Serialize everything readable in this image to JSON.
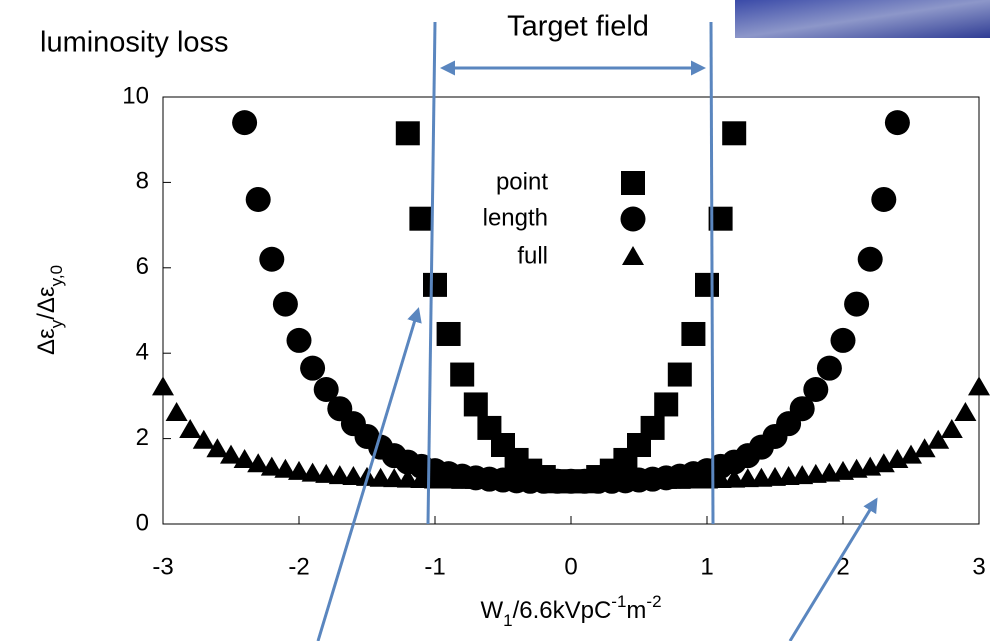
{
  "title": "luminosity loss",
  "annotation": "Target field",
  "chart_data": {
    "type": "scatter",
    "ylabel": [
      "Δε",
      "y",
      "/Δε",
      "y,0"
    ],
    "xlabel": [
      "W",
      "1",
      "/6.6kVpC",
      "-1",
      "m",
      "-2"
    ],
    "xlim": [
      -3,
      3
    ],
    "xticks": [
      -3,
      -2,
      -1,
      0,
      1,
      2,
      3
    ],
    "ylim": [
      0,
      10
    ],
    "yticks": [
      0,
      2,
      4,
      6,
      8,
      10
    ],
    "series": [
      {
        "name": "point",
        "color": "#000000",
        "marker": "square",
        "x": [
          -1.2,
          -1.1,
          -1.0,
          -0.9,
          -0.8,
          -0.7,
          -0.6,
          -0.5,
          -0.4,
          -0.3,
          -0.2,
          -0.1,
          0,
          0.1,
          0.2,
          0.3,
          0.4,
          0.5,
          0.6,
          0.7,
          0.8,
          0.9,
          1.0,
          1.1,
          1.2
        ],
        "values": [
          9.15,
          7.15,
          5.6,
          4.45,
          3.5,
          2.8,
          2.25,
          1.85,
          1.5,
          1.25,
          1.1,
          1.0,
          1.0,
          1.0,
          1.1,
          1.25,
          1.5,
          1.85,
          2.25,
          2.8,
          3.5,
          4.45,
          5.6,
          7.15,
          9.15
        ]
      },
      {
        "name": "length",
        "color": "#000000",
        "marker": "circle",
        "x": [
          -2.4,
          -2.3,
          -2.2,
          -2.1,
          -2.0,
          -1.9,
          -1.8,
          -1.7,
          -1.6,
          -1.5,
          -1.4,
          -1.3,
          -1.2,
          -1.1,
          -1.0,
          -0.9,
          -0.8,
          -0.7,
          -0.6,
          -0.5,
          -0.4,
          -0.3,
          -0.2,
          -0.1,
          0,
          0.1,
          0.2,
          0.3,
          0.4,
          0.5,
          0.6,
          0.7,
          0.8,
          0.9,
          1.0,
          1.1,
          1.2,
          1.3,
          1.4,
          1.5,
          1.6,
          1.7,
          1.8,
          1.9,
          2.0,
          2.1,
          2.2,
          2.3,
          2.4
        ],
        "values": [
          9.4,
          7.6,
          6.2,
          5.15,
          4.3,
          3.65,
          3.15,
          2.7,
          2.35,
          2.05,
          1.8,
          1.6,
          1.45,
          1.35,
          1.25,
          1.18,
          1.12,
          1.08,
          1.05,
          1.03,
          1.01,
          1.0,
          1.0,
          1.0,
          1.0,
          1.0,
          1.0,
          1.0,
          1.01,
          1.03,
          1.05,
          1.08,
          1.12,
          1.18,
          1.25,
          1.35,
          1.45,
          1.6,
          1.8,
          2.05,
          2.35,
          2.7,
          3.15,
          3.65,
          4.3,
          5.15,
          6.2,
          7.6,
          9.4
        ]
      },
      {
        "name": "full",
        "color": "#000000",
        "marker": "triangle",
        "x": [
          -3.0,
          -2.9,
          -2.8,
          -2.7,
          -2.6,
          -2.5,
          -2.4,
          -2.3,
          -2.2,
          -2.1,
          -2.0,
          -1.9,
          -1.8,
          -1.7,
          -1.6,
          -1.5,
          -1.4,
          -1.3,
          -1.2,
          -1.1,
          -1.0,
          -0.9,
          -0.8,
          -0.7,
          -0.6,
          -0.5,
          -0.4,
          -0.3,
          -0.2,
          -0.1,
          0,
          0.1,
          0.2,
          0.3,
          0.4,
          0.5,
          0.6,
          0.7,
          0.8,
          0.9,
          1.0,
          1.1,
          1.2,
          1.3,
          1.4,
          1.5,
          1.6,
          1.7,
          1.8,
          1.9,
          2.0,
          2.1,
          2.2,
          2.3,
          2.4,
          2.5,
          2.6,
          2.7,
          2.8,
          2.9,
          3.0
        ],
        "values": [
          3.2,
          2.6,
          2.2,
          1.95,
          1.75,
          1.6,
          1.5,
          1.4,
          1.32,
          1.27,
          1.22,
          1.18,
          1.15,
          1.12,
          1.1,
          1.08,
          1.06,
          1.05,
          1.04,
          1.03,
          1.02,
          1.02,
          1.01,
          1.01,
          1.01,
          1.0,
          1.0,
          1.0,
          1.0,
          1.0,
          1.0,
          1.0,
          1.0,
          1.0,
          1.0,
          1.0,
          1.01,
          1.01,
          1.01,
          1.02,
          1.02,
          1.03,
          1.04,
          1.05,
          1.06,
          1.08,
          1.1,
          1.12,
          1.15,
          1.18,
          1.22,
          1.27,
          1.32,
          1.4,
          1.5,
          1.6,
          1.75,
          1.95,
          2.2,
          2.6,
          3.2
        ]
      }
    ]
  }
}
